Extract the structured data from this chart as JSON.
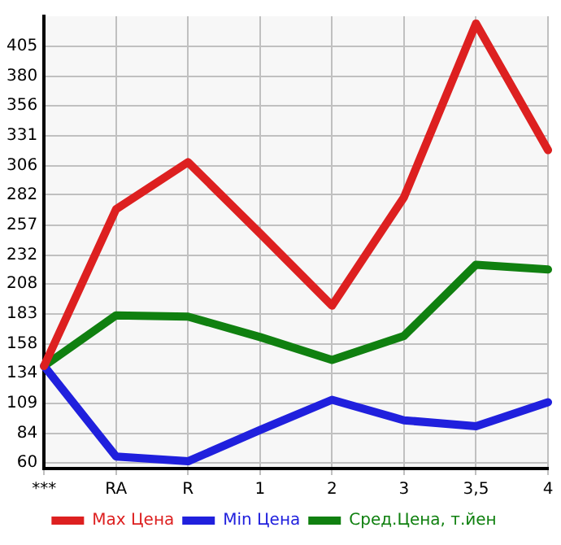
{
  "chart_data": {
    "type": "line",
    "categories": [
      "***",
      "RA",
      "R",
      "1",
      "2",
      "3",
      "3,5",
      "4"
    ],
    "series": [
      {
        "name": "Max Цена",
        "color": "#dd2020",
        "values": [
          140,
          270,
          309,
          250,
          190,
          280,
          424,
          319
        ]
      },
      {
        "name": "Min Цена",
        "color": "#2020dd",
        "values": [
          140,
          65,
          61,
          87,
          112,
          95,
          90,
          110
        ]
      },
      {
        "name": "Сред.Цена, т.йен",
        "color": "#108010",
        "values": [
          140,
          182,
          181,
          164,
          145,
          165,
          224,
          220
        ]
      }
    ],
    "ylim": [
      55,
      430
    ],
    "yticks": [
      60,
      84,
      109,
      134,
      158,
      183,
      208,
      232,
      257,
      282,
      306,
      331,
      356,
      380,
      405
    ],
    "grid": true,
    "legend": "bottom",
    "marker": "none",
    "line_style": "solid"
  }
}
